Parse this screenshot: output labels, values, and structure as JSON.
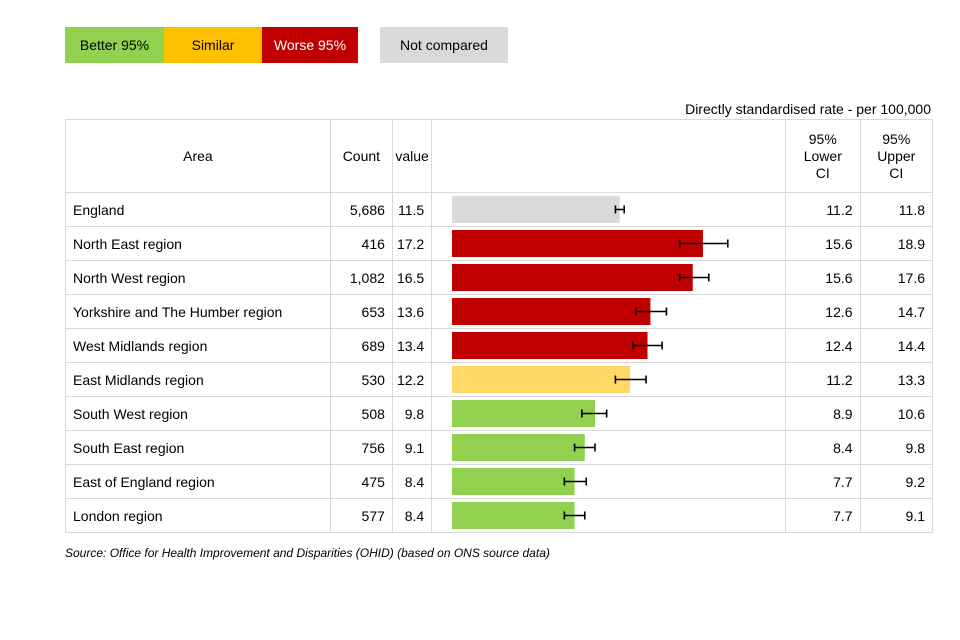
{
  "legend": {
    "better": "Better 95%",
    "similar": "Similar",
    "worse": "Worse 95%",
    "not_compared": "Not compared"
  },
  "rate_label": "Directly standardised rate - per 100,000",
  "headers": {
    "area": "Area",
    "count": "Count",
    "value": "value",
    "lower_ci": [
      "95%",
      "Lower",
      "CI"
    ],
    "upper_ci": [
      "95%",
      "Upper",
      "CI"
    ]
  },
  "colors": {
    "better": "#92d050",
    "similar": "#ffd966",
    "worse": "#c00000",
    "not_compared": "#d9d9d9"
  },
  "chart_data": {
    "type": "bar",
    "orientation": "horizontal",
    "xlim": [
      0,
      22
    ],
    "categories": [
      "England",
      "North East region",
      "North West region",
      "Yorkshire and The Humber region",
      "West Midlands region",
      "East Midlands region",
      "South West region",
      "South East region",
      "East of England region",
      "London region"
    ],
    "rows": [
      {
        "area": "England",
        "count": "5,686",
        "value": 11.5,
        "lower": 11.2,
        "upper": 11.8,
        "status": "not_compared"
      },
      {
        "area": "North East region",
        "count": "416",
        "value": 17.2,
        "lower": 15.6,
        "upper": 18.9,
        "status": "worse"
      },
      {
        "area": "North West region",
        "count": "1,082",
        "value": 16.5,
        "lower": 15.6,
        "upper": 17.6,
        "status": "worse"
      },
      {
        "area": "Yorkshire and The Humber region",
        "count": "653",
        "value": 13.6,
        "lower": 12.6,
        "upper": 14.7,
        "status": "worse"
      },
      {
        "area": "West Midlands region",
        "count": "689",
        "value": 13.4,
        "lower": 12.4,
        "upper": 14.4,
        "status": "worse"
      },
      {
        "area": "East Midlands region",
        "count": "530",
        "value": 12.2,
        "lower": 11.2,
        "upper": 13.3,
        "status": "similar"
      },
      {
        "area": "South West region",
        "count": "508",
        "value": 9.8,
        "lower": 8.9,
        "upper": 10.6,
        "status": "better"
      },
      {
        "area": "South East region",
        "count": "756",
        "value": 9.1,
        "lower": 8.4,
        "upper": 9.8,
        "status": "better"
      },
      {
        "area": "East of England region",
        "count": "475",
        "value": 8.4,
        "lower": 7.7,
        "upper": 9.2,
        "status": "better"
      },
      {
        "area": "London region",
        "count": "577",
        "value": 8.4,
        "lower": 7.7,
        "upper": 9.1,
        "status": "better"
      }
    ]
  },
  "source": "Source: Office for Health Improvement and Disparities (OHID) (based on ONS source data)"
}
